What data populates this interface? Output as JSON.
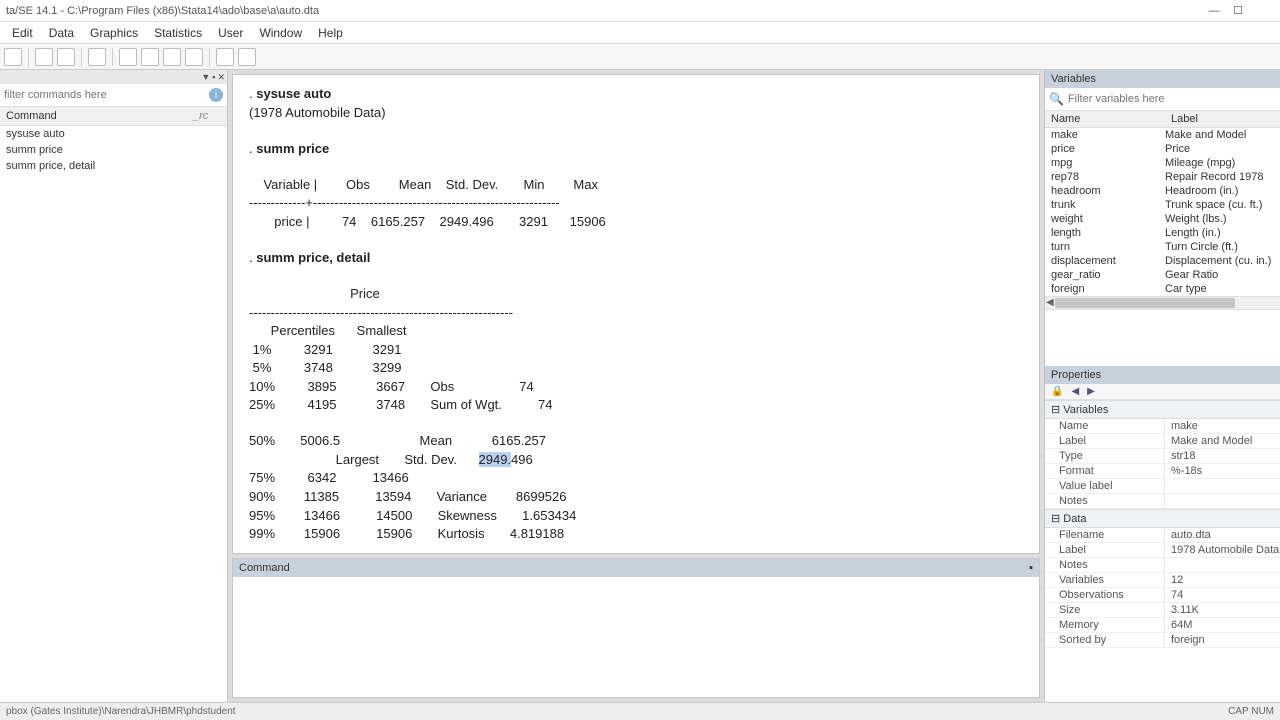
{
  "window": {
    "title": "ta/SE 14.1 - C:\\Program Files (x86)\\Stata14\\ado\\base\\a\\auto.dta",
    "btn_min": "—",
    "btn_max": "☐",
    "btn_close": ""
  },
  "menu": [
    "Edit",
    "Data",
    "Graphics",
    "Statistics",
    "User",
    "Window",
    "Help"
  ],
  "review": {
    "filter_placeholder": "filter commands here",
    "col_cmd": "Command",
    "col_rc": "_rc",
    "items": [
      "sysuse auto",
      "summ price",
      "summ price, detail"
    ]
  },
  "results": {
    "l1": ". ",
    "l1b": "sysuse auto",
    "l2": "(1978 Automobile Data)",
    "l4": ". ",
    "l4b": "summ price",
    "hdr": "    Variable |        Obs        Mean    Std. Dev.       Min        Max",
    "sep": "-------------+---------------------------------------------------------",
    "row": "       price |         74    6165.257    2949.496       3291      15906",
    "l8": ". ",
    "l8b": "summ price, detail",
    "dt": "                            Price",
    "dsep": "-------------------------------------------------------------",
    "dh": "      Percentiles      Smallest",
    "d1": " 1%         3291           3291",
    "d2": " 5%         3748           3299",
    "d3": "10%         3895           3667       Obs                  74",
    "d4": "25%         4195           3748       Sum of Wgt.          74",
    "d5": "50%       5006.5                      Mean           6165.257",
    "d6a": "                        Largest       Std. Dev.      ",
    "d6h": "2949.",
    "d6b": "496",
    "d7": "75%         6342          13466",
    "d8": "90%        11385          13594       Variance        8699526",
    "d9": "95%        13466          14500       Skewness       1.653434",
    "d10": "99%        15906          15906       Kurtosis       4.819188",
    "prompt": ". "
  },
  "command": {
    "label": "Command",
    "pin": "▪",
    "value": ""
  },
  "variables": {
    "header": "Variables",
    "filter_placeholder": "Filter variables here",
    "col_name": "Name",
    "col_label": "Label",
    "rows": [
      {
        "n": "make",
        "l": "Make and Model"
      },
      {
        "n": "price",
        "l": "Price"
      },
      {
        "n": "mpg",
        "l": "Mileage (mpg)"
      },
      {
        "n": "rep78",
        "l": "Repair Record 1978"
      },
      {
        "n": "headroom",
        "l": "Headroom (in.)"
      },
      {
        "n": "trunk",
        "l": "Trunk space (cu. ft.)"
      },
      {
        "n": "weight",
        "l": "Weight (lbs.)"
      },
      {
        "n": "length",
        "l": "Length (in.)"
      },
      {
        "n": "turn",
        "l": "Turn Circle (ft.)"
      },
      {
        "n": "displacement",
        "l": "Displacement (cu. in.)"
      },
      {
        "n": "gear_ratio",
        "l": "Gear Ratio"
      },
      {
        "n": "foreign",
        "l": "Car type"
      }
    ]
  },
  "properties": {
    "header": "Properties",
    "groups": {
      "vars": "Variables",
      "data": "Data"
    },
    "var_rows": [
      {
        "k": "Name",
        "v": "make"
      },
      {
        "k": "Label",
        "v": "Make and Model"
      },
      {
        "k": "Type",
        "v": "str18"
      },
      {
        "k": "Format",
        "v": "%-18s"
      },
      {
        "k": "Value label",
        "v": ""
      },
      {
        "k": "Notes",
        "v": ""
      }
    ],
    "data_rows": [
      {
        "k": "Filename",
        "v": "auto.dta"
      },
      {
        "k": "Label",
        "v": "1978 Automobile Data"
      },
      {
        "k": "Notes",
        "v": ""
      },
      {
        "k": "Variables",
        "v": "12"
      },
      {
        "k": "Observations",
        "v": "74"
      },
      {
        "k": "Size",
        "v": "3.11K"
      },
      {
        "k": "Memory",
        "v": "64M"
      },
      {
        "k": "Sorted by",
        "v": "foreign"
      }
    ]
  },
  "status": {
    "left": "pbox (Gates Institute)\\Narendra\\JHBMR\\phdstudent",
    "right": "CAP  NUM"
  },
  "colors": {
    "panel_hdr": "#c7d1dc",
    "highlight": "#b7d1ef"
  }
}
